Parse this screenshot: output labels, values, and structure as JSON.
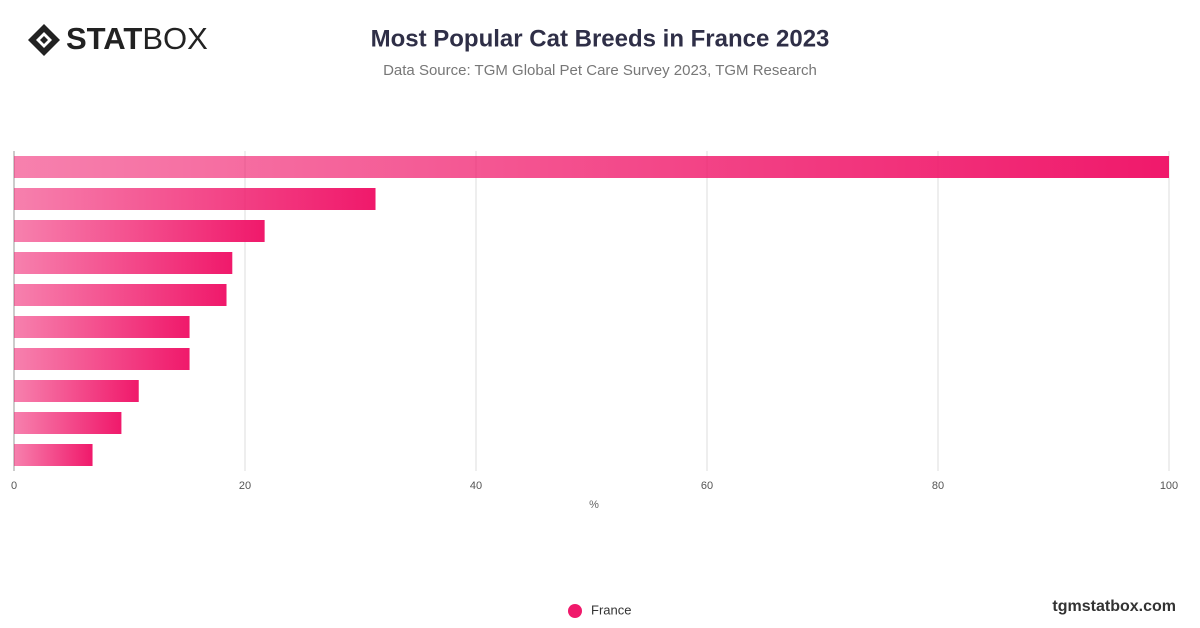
{
  "logo": {
    "bold": "STAT",
    "light": "BOX"
  },
  "footer": "tgmstatbox.com",
  "chart_data": {
    "type": "hbar",
    "title": "Most Popular Cat Breeds in France 2023",
    "subtitle": "Data Source: TGM Global Pet Care Survey 2023, TGM Research",
    "x_label": "%",
    "categories": [
      null,
      null,
      null,
      null,
      null,
      null,
      null,
      null,
      null,
      null
    ],
    "series": [
      {
        "name": "France",
        "color": "#f0196b",
        "values": [
          100,
          31.3,
          21.7,
          18.9,
          18.4,
          15.2,
          15.2,
          10.8,
          9.3,
          6.8
        ]
      }
    ],
    "xlim": [
      0,
      100
    ],
    "xticks": [
      0,
      20,
      40,
      60,
      80,
      100
    ],
    "grid": true
  }
}
